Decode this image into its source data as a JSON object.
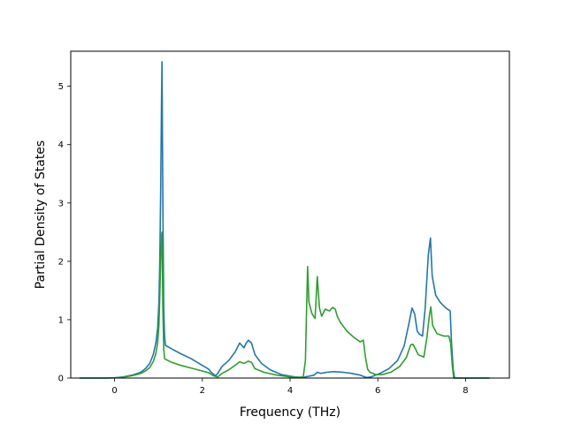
{
  "chart_data": {
    "type": "line",
    "title": "",
    "xlabel": "Frequency (THz)",
    "ylabel": "Partial Density of States",
    "xlim": [
      -1.0,
      9.0
    ],
    "ylim": [
      0,
      5.6
    ],
    "xticks": [
      0,
      2,
      4,
      6,
      8
    ],
    "yticks": [
      0,
      1,
      2,
      3,
      4,
      5
    ],
    "grid": false,
    "legend": "none",
    "series": [
      {
        "color": "#1f77b4",
        "points": [
          [
            -0.8,
            0
          ],
          [
            -0.2,
            0
          ],
          [
            0,
            0.005
          ],
          [
            0.2,
            0.02
          ],
          [
            0.4,
            0.05
          ],
          [
            0.6,
            0.1
          ],
          [
            0.7,
            0.16
          ],
          [
            0.8,
            0.25
          ],
          [
            0.88,
            0.4
          ],
          [
            0.94,
            0.6
          ],
          [
            0.98,
            0.85
          ],
          [
            1.01,
            1.3
          ],
          [
            1.03,
            2.0
          ],
          [
            1.05,
            3.2
          ],
          [
            1.07,
            4.8
          ],
          [
            1.08,
            5.42
          ],
          [
            1.1,
            3.0
          ],
          [
            1.12,
            1.2
          ],
          [
            1.14,
            0.7
          ],
          [
            1.16,
            0.56
          ],
          [
            1.3,
            0.5
          ],
          [
            1.5,
            0.42
          ],
          [
            1.75,
            0.33
          ],
          [
            1.95,
            0.24
          ],
          [
            2.15,
            0.15
          ],
          [
            2.2,
            0.1
          ],
          [
            2.3,
            0.04
          ],
          [
            2.35,
            0.08
          ],
          [
            2.45,
            0.2
          ],
          [
            2.6,
            0.3
          ],
          [
            2.75,
            0.45
          ],
          [
            2.85,
            0.6
          ],
          [
            2.95,
            0.52
          ],
          [
            3.0,
            0.6
          ],
          [
            3.05,
            0.65
          ],
          [
            3.12,
            0.6
          ],
          [
            3.2,
            0.4
          ],
          [
            3.35,
            0.25
          ],
          [
            3.55,
            0.14
          ],
          [
            3.8,
            0.06
          ],
          [
            4.1,
            0.02
          ],
          [
            4.3,
            0.01
          ],
          [
            4.35,
            0.02
          ],
          [
            4.55,
            0.05
          ],
          [
            4.62,
            0.1
          ],
          [
            4.7,
            0.08
          ],
          [
            4.85,
            0.1
          ],
          [
            5.0,
            0.11
          ],
          [
            5.2,
            0.1
          ],
          [
            5.4,
            0.08
          ],
          [
            5.6,
            0.05
          ],
          [
            5.7,
            0.02
          ],
          [
            5.75,
            0.01
          ],
          [
            5.85,
            0.02
          ],
          [
            6.05,
            0.08
          ],
          [
            6.25,
            0.16
          ],
          [
            6.45,
            0.3
          ],
          [
            6.6,
            0.55
          ],
          [
            6.7,
            0.9
          ],
          [
            6.78,
            1.2
          ],
          [
            6.84,
            1.1
          ],
          [
            6.9,
            0.8
          ],
          [
            6.95,
            0.75
          ],
          [
            7.02,
            0.72
          ],
          [
            7.08,
            1.2
          ],
          [
            7.15,
            2.1
          ],
          [
            7.2,
            2.4
          ],
          [
            7.24,
            1.75
          ],
          [
            7.32,
            1.42
          ],
          [
            7.42,
            1.3
          ],
          [
            7.55,
            1.2
          ],
          [
            7.65,
            1.15
          ],
          [
            7.68,
            0.6
          ],
          [
            7.72,
            0.15
          ],
          [
            7.75,
            0
          ],
          [
            8.55,
            0
          ]
        ]
      },
      {
        "color": "#2ca02c",
        "points": [
          [
            -0.8,
            0
          ],
          [
            -0.2,
            0
          ],
          [
            0,
            0.004
          ],
          [
            0.2,
            0.015
          ],
          [
            0.4,
            0.04
          ],
          [
            0.6,
            0.08
          ],
          [
            0.7,
            0.12
          ],
          [
            0.8,
            0.18
          ],
          [
            0.88,
            0.28
          ],
          [
            0.94,
            0.42
          ],
          [
            0.98,
            0.6
          ],
          [
            1.01,
            0.9
          ],
          [
            1.03,
            1.4
          ],
          [
            1.05,
            2.0
          ],
          [
            1.07,
            2.45
          ],
          [
            1.08,
            2.5
          ],
          [
            1.1,
            1.2
          ],
          [
            1.12,
            0.5
          ],
          [
            1.14,
            0.33
          ],
          [
            1.3,
            0.27
          ],
          [
            1.5,
            0.22
          ],
          [
            1.75,
            0.17
          ],
          [
            1.95,
            0.13
          ],
          [
            2.15,
            0.09
          ],
          [
            2.25,
            0.04
          ],
          [
            2.35,
            0.02
          ],
          [
            2.45,
            0.08
          ],
          [
            2.6,
            0.14
          ],
          [
            2.75,
            0.22
          ],
          [
            2.85,
            0.28
          ],
          [
            2.95,
            0.25
          ],
          [
            3.05,
            0.29
          ],
          [
            3.12,
            0.27
          ],
          [
            3.2,
            0.16
          ],
          [
            3.4,
            0.1
          ],
          [
            3.7,
            0.05
          ],
          [
            4.0,
            0.02
          ],
          [
            4.2,
            0.01
          ],
          [
            4.3,
            0.02
          ],
          [
            4.35,
            0.3
          ],
          [
            4.38,
            1.3
          ],
          [
            4.4,
            1.91
          ],
          [
            4.43,
            1.3
          ],
          [
            4.5,
            1.1
          ],
          [
            4.57,
            1.02
          ],
          [
            4.62,
            1.74
          ],
          [
            4.67,
            1.2
          ],
          [
            4.72,
            1.06
          ],
          [
            4.8,
            1.18
          ],
          [
            4.9,
            1.15
          ],
          [
            4.97,
            1.21
          ],
          [
            5.03,
            1.18
          ],
          [
            5.08,
            1.05
          ],
          [
            5.15,
            0.95
          ],
          [
            5.3,
            0.8
          ],
          [
            5.45,
            0.7
          ],
          [
            5.6,
            0.62
          ],
          [
            5.67,
            0.65
          ],
          [
            5.72,
            0.35
          ],
          [
            5.77,
            0.15
          ],
          [
            5.82,
            0.1
          ],
          [
            5.95,
            0.06
          ],
          [
            6.1,
            0.06
          ],
          [
            6.3,
            0.1
          ],
          [
            6.5,
            0.2
          ],
          [
            6.65,
            0.35
          ],
          [
            6.75,
            0.57
          ],
          [
            6.8,
            0.58
          ],
          [
            6.86,
            0.5
          ],
          [
            6.92,
            0.4
          ],
          [
            6.98,
            0.38
          ],
          [
            7.05,
            0.36
          ],
          [
            7.12,
            0.7
          ],
          [
            7.18,
            1.1
          ],
          [
            7.21,
            1.22
          ],
          [
            7.25,
            0.9
          ],
          [
            7.35,
            0.76
          ],
          [
            7.5,
            0.72
          ],
          [
            7.62,
            0.72
          ],
          [
            7.66,
            0.6
          ],
          [
            7.7,
            0.2
          ],
          [
            7.73,
            0
          ],
          [
            8.55,
            0
          ]
        ]
      }
    ]
  }
}
